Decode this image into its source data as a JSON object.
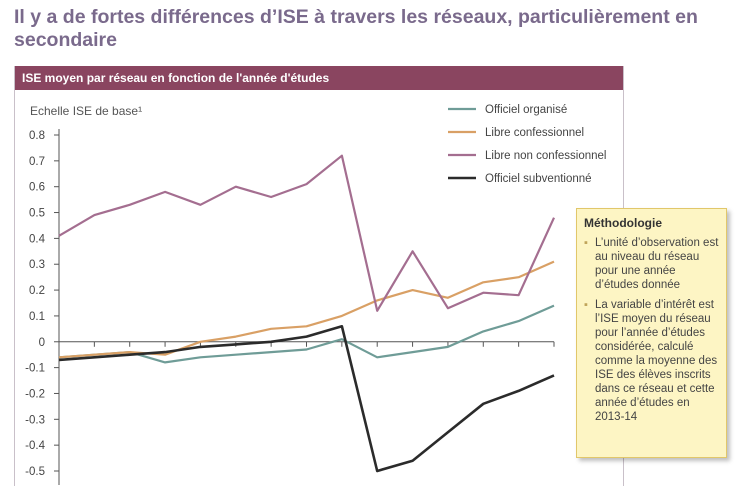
{
  "headline": "Il y a de fortes différences d’ISE à travers les réseaux, particulièrement en secondaire",
  "panel_title": "ISE moyen par réseau en fonction de l'année d'études",
  "note": {
    "title": "Méthodologie",
    "bullets": [
      "L’unité d’observation est au niveau du réseau pour une année d’études donnée",
      "La variable d’intérêt est l’ISE moyen du réseau pour l’année d’études considérée, calculé comme la moyenne des ISE des élèves inscrits dans ce réseau et cette année d’études en 2013-14"
    ]
  },
  "chart_data": {
    "type": "line",
    "ylabel": "Echelle ISE de base¹",
    "ylim": [
      -0.5,
      0.8
    ],
    "yticks": [
      -0.5,
      -0.4,
      -0.3,
      -0.2,
      -0.1,
      0,
      0.1,
      0.2,
      0.3,
      0.4,
      0.5,
      0.6,
      0.7,
      0.8
    ],
    "ytick_labels": [
      "-0.5",
      "-0.4",
      "-0.3",
      "-0.2",
      "-0.1",
      "0",
      "0.1",
      "0.2",
      "0.3",
      "0.4",
      "0.5",
      "0.6",
      "0.7",
      "0.8"
    ],
    "x": [
      1,
      2,
      3,
      4,
      5,
      6,
      7,
      8,
      9,
      10,
      11,
      12,
      13,
      14,
      15
    ],
    "grid": false,
    "legend_position": "top-right",
    "series": [
      {
        "name": "Officiel organisé",
        "color": "#6f9c97",
        "values": [
          -0.06,
          -0.05,
          -0.04,
          -0.08,
          -0.06,
          -0.05,
          -0.04,
          -0.03,
          0.01,
          -0.06,
          -0.04,
          -0.02,
          0.04,
          0.08,
          0.14
        ]
      },
      {
        "name": "Libre confessionnel",
        "color": "#d9a065",
        "values": [
          -0.06,
          -0.05,
          -0.04,
          -0.05,
          0.0,
          0.02,
          0.05,
          0.06,
          0.1,
          0.16,
          0.2,
          0.17,
          0.23,
          0.25,
          0.31
        ]
      },
      {
        "name": "Libre non confessionnel",
        "color": "#a46e90",
        "values": [
          0.41,
          0.49,
          0.53,
          0.58,
          0.53,
          0.6,
          0.56,
          0.61,
          0.72,
          0.12,
          0.35,
          0.13,
          0.19,
          0.18,
          0.48
        ]
      },
      {
        "name": "Officiel subventionné",
        "color": "#2b2b2b",
        "values": [
          -0.07,
          -0.06,
          -0.05,
          -0.04,
          -0.02,
          -0.01,
          0.0,
          0.02,
          0.06,
          -0.5,
          -0.46,
          -0.35,
          -0.24,
          -0.19,
          -0.13
        ]
      }
    ]
  }
}
